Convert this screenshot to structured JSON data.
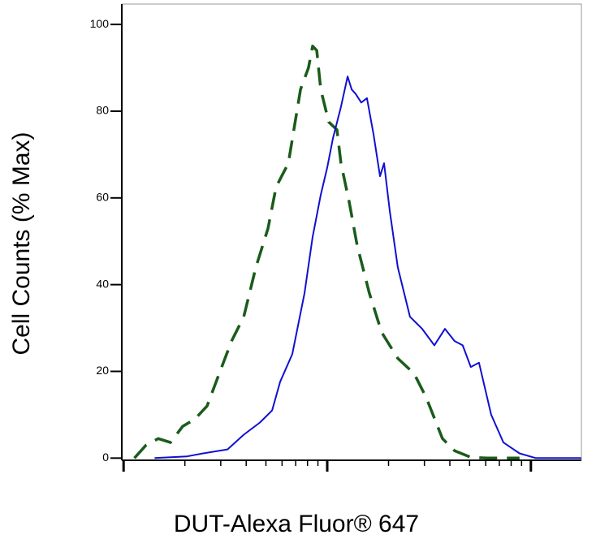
{
  "chart_data": {
    "type": "line",
    "xlabel": "DUT-Alexa Fluor® 647",
    "ylabel": "Cell Counts (% Max)",
    "xscale": "log",
    "xlim": [
      9.8,
      1770
    ],
    "xticks": [
      10,
      100,
      1000
    ],
    "ylim": [
      -0.5,
      104.7
    ],
    "yticks": [
      0,
      20,
      40,
      60,
      80,
      100
    ],
    "series": [
      {
        "color": "#1a5c1a",
        "dash": true,
        "x": [
          11.3,
          12.9,
          14.8,
          17.0,
          19.5,
          22.4,
          25.7,
          29.5,
          33.9,
          38.9,
          44.6,
          51.2,
          56.1,
          64.4,
          73.9,
          80.9,
          84.8,
          88.8,
          92.9,
          101.8,
          111.6,
          116.8,
          128.2,
          140.3,
          161,
          185,
          222,
          267,
          306,
          368,
          422,
          507,
          610,
          879
        ],
        "values": [
          0,
          3,
          4.5,
          3.6,
          7.3,
          9,
          12,
          19.5,
          27,
          32.6,
          44,
          53,
          62.5,
          68,
          85,
          90,
          95,
          94,
          85,
          77.5,
          75.7,
          68,
          59,
          49,
          38,
          29,
          23,
          19.5,
          14,
          4.5,
          1.7,
          0.2,
          0,
          0
        ]
      },
      {
        "color": "#1010d0",
        "dash": false,
        "x": [
          14.2,
          20.5,
          24.6,
          32.4,
          38.9,
          46.7,
          53.6,
          58.7,
          67.4,
          77.3,
          84.8,
          92.9,
          100,
          106.7,
          116.8,
          125.9,
          131.8,
          137.8,
          146.9,
          156.7,
          168.7,
          181.6,
          190.1,
          202.8,
          222,
          254.9,
          292.4,
          335.7,
          378.4,
          422,
          462.4,
          507,
          556,
          638,
          733,
          879,
          1057,
          1766
        ],
        "values": [
          0,
          0.4,
          1.1,
          2,
          5.4,
          8.2,
          11,
          17.6,
          24,
          38,
          51,
          60.7,
          67,
          73.8,
          81,
          88,
          85,
          84,
          82,
          83,
          74.7,
          65,
          68,
          57,
          44,
          32.6,
          29.8,
          26,
          29.8,
          27,
          26,
          21,
          22,
          10,
          3.6,
          1.1,
          0,
          0
        ]
      }
    ]
  }
}
